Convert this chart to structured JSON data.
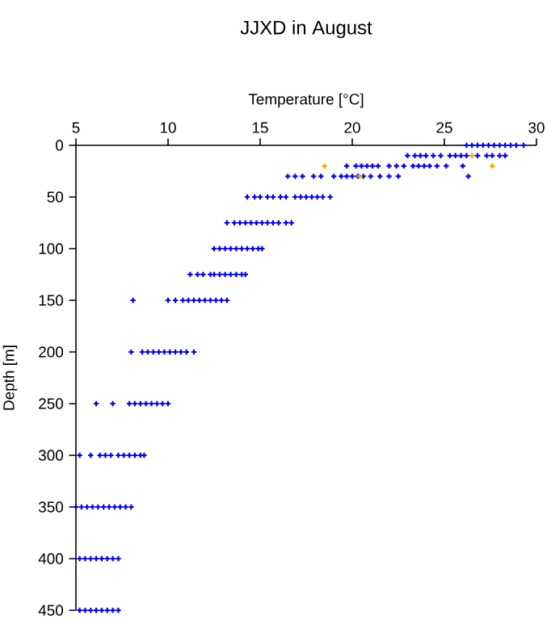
{
  "chart_data": {
    "type": "scatter",
    "title": "JJXD in August",
    "xlabel": "Temperature [°C]",
    "ylabel": "Depth [m]",
    "xlim": [
      5,
      30
    ],
    "xticks": [
      5,
      10,
      15,
      20,
      25,
      30
    ],
    "ylim": [
      450,
      0
    ],
    "yticks": [
      0,
      50,
      100,
      150,
      200,
      250,
      300,
      350,
      400,
      450
    ],
    "grid": false,
    "marker": "cross",
    "series": [
      {
        "color": "#0000ff",
        "x": [
          26.2,
          26.5,
          26.8,
          27.1,
          27.4,
          27.7,
          28.0,
          28.3,
          28.6,
          28.9,
          29.3,
          23.0,
          23.4,
          23.7,
          24.0,
          24.4,
          24.8,
          25.3,
          25.6,
          25.9,
          26.2,
          26.8,
          27.3,
          27.6,
          28.0,
          28.3,
          19.7,
          20.2,
          20.5,
          20.8,
          21.1,
          21.4,
          22.0,
          22.4,
          22.8,
          23.3,
          23.6,
          23.9,
          24.2,
          24.6,
          25.1,
          26.0,
          16.5,
          16.9,
          17.3,
          17.9,
          18.3,
          19.0,
          19.4,
          19.7,
          20.0,
          20.3,
          20.6,
          21.0,
          21.5,
          22.0,
          22.5,
          26.3,
          14.3,
          14.7,
          15.0,
          15.4,
          15.7,
          16.1,
          16.4,
          16.9,
          17.2,
          17.5,
          17.8,
          18.1,
          18.4,
          18.8,
          13.2,
          13.6,
          13.9,
          14.2,
          14.5,
          14.8,
          15.1,
          15.4,
          15.7,
          16.0,
          16.4,
          16.7,
          12.5,
          12.8,
          13.1,
          13.4,
          13.7,
          14.0,
          14.3,
          14.6,
          14.9,
          15.1,
          11.2,
          11.6,
          11.9,
          12.3,
          12.5,
          12.8,
          13.1,
          13.4,
          13.7,
          14.0,
          14.2,
          8.1,
          10.0,
          10.4,
          10.8,
          11.1,
          11.4,
          11.7,
          12.0,
          12.3,
          12.6,
          12.9,
          13.2,
          8.0,
          8.6,
          8.9,
          9.2,
          9.5,
          9.8,
          10.1,
          10.4,
          10.7,
          11.0,
          11.4,
          6.1,
          7.0,
          7.9,
          8.2,
          8.5,
          8.8,
          9.1,
          9.4,
          9.7,
          10.0,
          5.2,
          5.8,
          6.3,
          6.6,
          6.9,
          7.3,
          7.6,
          7.9,
          8.2,
          8.5,
          8.7,
          5.0,
          5.3,
          5.6,
          5.9,
          6.2,
          6.5,
          6.8,
          7.1,
          7.4,
          7.7,
          8.0,
          5.2,
          5.5,
          5.8,
          6.1,
          6.4,
          6.7,
          7.0,
          7.3,
          5.2,
          5.5,
          5.8,
          6.1,
          6.4,
          6.7,
          7.0,
          7.3
        ],
        "values": [
          0,
          0,
          0,
          0,
          0,
          0,
          0,
          0,
          0,
          0,
          0,
          10,
          10,
          10,
          10,
          10,
          10,
          10,
          10,
          10,
          10,
          10,
          10,
          10,
          10,
          10,
          20,
          20,
          20,
          20,
          20,
          20,
          20,
          20,
          20,
          20,
          20,
          20,
          20,
          20,
          20,
          20,
          30,
          30,
          30,
          30,
          30,
          30,
          30,
          30,
          30,
          30,
          30,
          30,
          30,
          30,
          30,
          30,
          50,
          50,
          50,
          50,
          50,
          50,
          50,
          50,
          50,
          50,
          50,
          50,
          50,
          50,
          75,
          75,
          75,
          75,
          75,
          75,
          75,
          75,
          75,
          75,
          75,
          75,
          100,
          100,
          100,
          100,
          100,
          100,
          100,
          100,
          100,
          100,
          125,
          125,
          125,
          125,
          125,
          125,
          125,
          125,
          125,
          125,
          125,
          150,
          150,
          150,
          150,
          150,
          150,
          150,
          150,
          150,
          150,
          150,
          150,
          200,
          200,
          200,
          200,
          200,
          200,
          200,
          200,
          200,
          200,
          200,
          250,
          250,
          250,
          250,
          250,
          250,
          250,
          250,
          250,
          250,
          300,
          300,
          300,
          300,
          300,
          300,
          300,
          300,
          300,
          300,
          300,
          350,
          350,
          350,
          350,
          350,
          350,
          350,
          350,
          350,
          350,
          350,
          400,
          400,
          400,
          400,
          400,
          400,
          400,
          400,
          450,
          450,
          450,
          450,
          450,
          450,
          450,
          450
        ]
      },
      {
        "color": "#ffa500",
        "x": [
          26.5,
          18.5,
          27.6,
          20.4
        ],
        "values": [
          10,
          20,
          20,
          30
        ]
      }
    ]
  }
}
